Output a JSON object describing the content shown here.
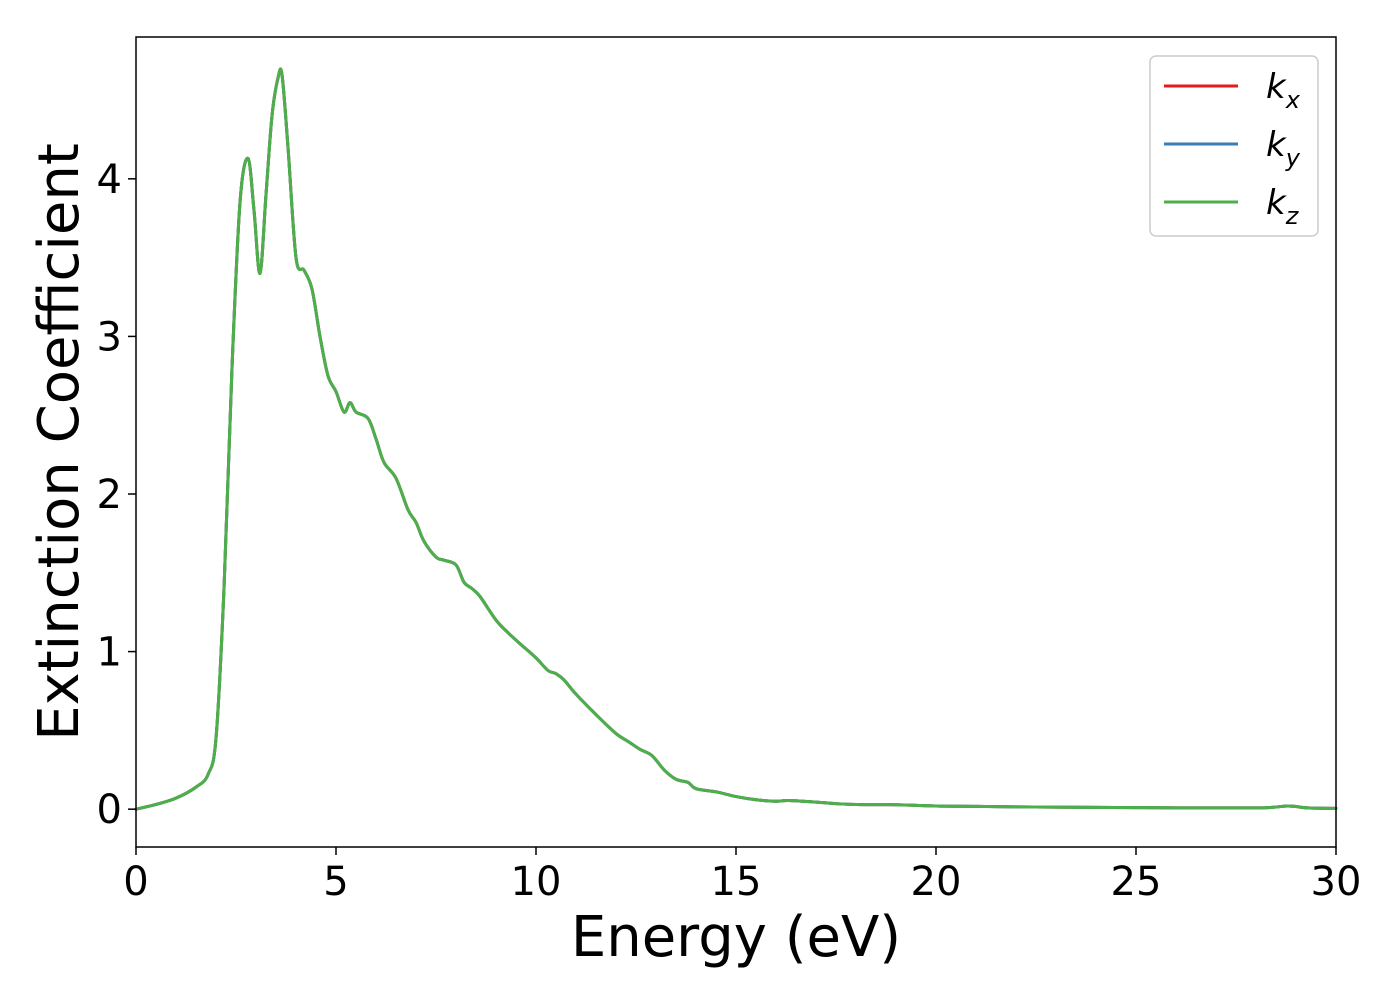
{
  "chart_data": {
    "type": "line",
    "title": "",
    "xlabel": "Energy (eV)",
    "ylabel": "Extinction Coefficient",
    "xlim": [
      0,
      30
    ],
    "ylim": [
      -0.24,
      4.9
    ],
    "xticks": [
      0,
      5,
      10,
      15,
      20,
      25,
      30
    ],
    "yticks": [
      0,
      1,
      2,
      3,
      4
    ],
    "grid": false,
    "legend_position": "top-right",
    "series": [
      {
        "name": "k_x",
        "label_base": "k",
        "label_sub": "x",
        "color": "#e41a1c",
        "x": [
          0,
          0.5,
          1.0,
          1.5,
          1.8,
          2.0,
          2.2,
          2.4,
          2.6,
          2.8,
          2.95,
          3.1,
          3.25,
          3.4,
          3.55,
          3.65,
          3.8,
          4.0,
          4.2,
          4.4,
          4.6,
          4.8,
          5.0,
          5.2,
          5.35,
          5.5,
          5.8,
          6.0,
          6.2,
          6.5,
          6.8,
          7.0,
          7.2,
          7.5,
          7.7,
          8.0,
          8.2,
          8.4,
          8.6,
          9.0,
          9.3,
          9.6,
          10.0,
          10.3,
          10.5,
          10.7,
          11.0,
          11.5,
          12.0,
          12.3,
          12.6,
          12.9,
          13.2,
          13.5,
          13.8,
          14.0,
          14.5,
          15.0,
          15.5,
          16.0,
          16.3,
          17.0,
          17.5,
          18.0,
          19.0,
          20.0,
          21.0,
          22.0,
          25.0,
          28.0,
          28.8,
          29.3,
          30.0
        ],
        "values": [
          0.0,
          0.03,
          0.07,
          0.14,
          0.22,
          0.45,
          1.4,
          2.8,
          3.85,
          4.13,
          3.8,
          3.4,
          3.9,
          4.4,
          4.64,
          4.66,
          4.2,
          3.5,
          3.42,
          3.3,
          3.0,
          2.75,
          2.65,
          2.52,
          2.58,
          2.52,
          2.48,
          2.35,
          2.2,
          2.1,
          1.9,
          1.82,
          1.7,
          1.6,
          1.58,
          1.55,
          1.44,
          1.4,
          1.35,
          1.2,
          1.12,
          1.05,
          0.96,
          0.88,
          0.86,
          0.82,
          0.73,
          0.6,
          0.48,
          0.43,
          0.38,
          0.34,
          0.25,
          0.19,
          0.17,
          0.13,
          0.11,
          0.08,
          0.06,
          0.05,
          0.055,
          0.045,
          0.035,
          0.03,
          0.028,
          0.02,
          0.018,
          0.015,
          0.01,
          0.008,
          0.02,
          0.008,
          0.005
        ]
      },
      {
        "name": "k_y",
        "label_base": "k",
        "label_sub": "y",
        "color": "#377eb8",
        "x": [
          0,
          0.5,
          1.0,
          1.5,
          1.8,
          2.0,
          2.2,
          2.4,
          2.6,
          2.8,
          2.95,
          3.1,
          3.25,
          3.4,
          3.55,
          3.65,
          3.8,
          4.0,
          4.2,
          4.4,
          4.6,
          4.8,
          5.0,
          5.2,
          5.35,
          5.5,
          5.8,
          6.0,
          6.2,
          6.5,
          6.8,
          7.0,
          7.2,
          7.5,
          7.7,
          8.0,
          8.2,
          8.4,
          8.6,
          9.0,
          9.3,
          9.6,
          10.0,
          10.3,
          10.5,
          10.7,
          11.0,
          11.5,
          12.0,
          12.3,
          12.6,
          12.9,
          13.2,
          13.5,
          13.8,
          14.0,
          14.5,
          15.0,
          15.5,
          16.0,
          16.3,
          17.0,
          17.5,
          18.0,
          19.0,
          20.0,
          21.0,
          22.0,
          25.0,
          28.0,
          28.8,
          29.3,
          30.0
        ],
        "values": [
          0.0,
          0.03,
          0.07,
          0.14,
          0.22,
          0.45,
          1.4,
          2.8,
          3.85,
          4.13,
          3.8,
          3.4,
          3.9,
          4.4,
          4.64,
          4.66,
          4.2,
          3.5,
          3.42,
          3.3,
          3.0,
          2.75,
          2.65,
          2.52,
          2.58,
          2.52,
          2.48,
          2.35,
          2.2,
          2.1,
          1.9,
          1.82,
          1.7,
          1.6,
          1.58,
          1.55,
          1.44,
          1.4,
          1.35,
          1.2,
          1.12,
          1.05,
          0.96,
          0.88,
          0.86,
          0.82,
          0.73,
          0.6,
          0.48,
          0.43,
          0.38,
          0.34,
          0.25,
          0.19,
          0.17,
          0.13,
          0.11,
          0.08,
          0.06,
          0.05,
          0.055,
          0.045,
          0.035,
          0.03,
          0.028,
          0.02,
          0.018,
          0.015,
          0.01,
          0.008,
          0.02,
          0.008,
          0.005
        ]
      },
      {
        "name": "k_z",
        "label_base": "k",
        "label_sub": "z",
        "color": "#4daf4a",
        "x": [
          0,
          0.5,
          1.0,
          1.5,
          1.8,
          2.0,
          2.2,
          2.4,
          2.6,
          2.8,
          2.95,
          3.1,
          3.25,
          3.4,
          3.55,
          3.65,
          3.8,
          4.0,
          4.2,
          4.4,
          4.6,
          4.8,
          5.0,
          5.2,
          5.35,
          5.5,
          5.8,
          6.0,
          6.2,
          6.5,
          6.8,
          7.0,
          7.2,
          7.5,
          7.7,
          8.0,
          8.2,
          8.4,
          8.6,
          9.0,
          9.3,
          9.6,
          10.0,
          10.3,
          10.5,
          10.7,
          11.0,
          11.5,
          12.0,
          12.3,
          12.6,
          12.9,
          13.2,
          13.5,
          13.8,
          14.0,
          14.5,
          15.0,
          15.5,
          16.0,
          16.3,
          17.0,
          17.5,
          18.0,
          19.0,
          20.0,
          21.0,
          22.0,
          25.0,
          28.0,
          28.8,
          29.3,
          30.0
        ],
        "values": [
          0.0,
          0.03,
          0.07,
          0.14,
          0.22,
          0.45,
          1.4,
          2.8,
          3.85,
          4.13,
          3.8,
          3.4,
          3.9,
          4.4,
          4.64,
          4.66,
          4.2,
          3.5,
          3.42,
          3.3,
          3.0,
          2.75,
          2.65,
          2.52,
          2.58,
          2.52,
          2.48,
          2.35,
          2.2,
          2.1,
          1.9,
          1.82,
          1.7,
          1.6,
          1.58,
          1.55,
          1.44,
          1.4,
          1.35,
          1.2,
          1.12,
          1.05,
          0.96,
          0.88,
          0.86,
          0.82,
          0.73,
          0.6,
          0.48,
          0.43,
          0.38,
          0.34,
          0.25,
          0.19,
          0.17,
          0.13,
          0.11,
          0.08,
          0.06,
          0.05,
          0.055,
          0.045,
          0.035,
          0.03,
          0.028,
          0.02,
          0.018,
          0.015,
          0.01,
          0.008,
          0.02,
          0.008,
          0.005
        ]
      }
    ]
  }
}
